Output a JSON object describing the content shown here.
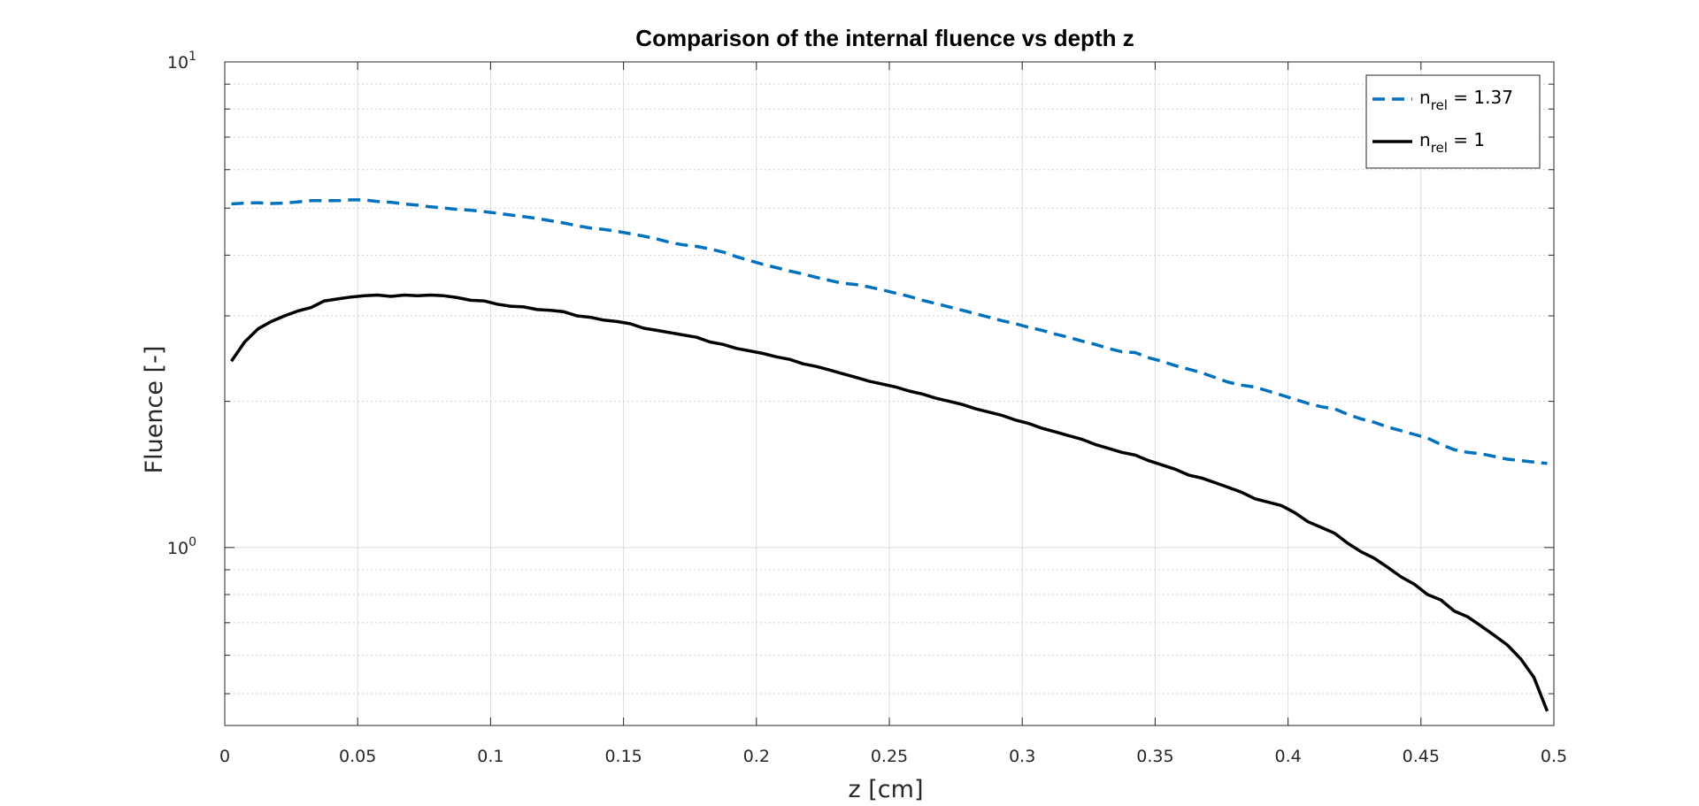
{
  "chart_data": {
    "type": "line",
    "title": "Comparison of the internal fluence vs depth z",
    "xlabel": "z [cm]",
    "ylabel": "Fluence [-]",
    "xlim": [
      0,
      0.5
    ],
    "ylim": [
      0.43,
      10
    ],
    "yscale": "log",
    "grid": true,
    "legend_position": "top-right",
    "x_ticks": [
      "0",
      "0.05",
      "0.1",
      "0.15",
      "0.2",
      "0.25",
      "0.3",
      "0.35",
      "0.4",
      "0.45",
      "0.5"
    ],
    "y_ticks": [
      {
        "base": "10",
        "exp": "0",
        "value": 1
      },
      {
        "base": "10",
        "exp": "1",
        "value": 10
      }
    ],
    "series": [
      {
        "name": "n_rel = 1.37",
        "legend_main": "n",
        "legend_sub": "rel",
        "legend_rest": " = 1.37",
        "color": "#0072BD",
        "style": "dashed",
        "x": [
          0.0025,
          0.0075,
          0.0125,
          0.0175,
          0.0225,
          0.0275,
          0.0325,
          0.0375,
          0.0425,
          0.0475,
          0.0525,
          0.0575,
          0.0625,
          0.0675,
          0.0725,
          0.0775,
          0.0825,
          0.0875,
          0.0925,
          0.0975,
          0.1025,
          0.1075,
          0.1125,
          0.1175,
          0.1225,
          0.1275,
          0.1325,
          0.1375,
          0.1425,
          0.1475,
          0.1525,
          0.1575,
          0.1625,
          0.1675,
          0.1725,
          0.1775,
          0.1825,
          0.1875,
          0.1925,
          0.1975,
          0.2025,
          0.2075,
          0.2125,
          0.2175,
          0.2225,
          0.2275,
          0.2325,
          0.2375,
          0.2425,
          0.2475,
          0.2525,
          0.2575,
          0.2625,
          0.2675,
          0.2725,
          0.2775,
          0.2825,
          0.2875,
          0.2925,
          0.2975,
          0.3025,
          0.3075,
          0.3125,
          0.3175,
          0.3225,
          0.3275,
          0.3325,
          0.3375,
          0.3425,
          0.3475,
          0.3525,
          0.3575,
          0.3625,
          0.3675,
          0.3725,
          0.3775,
          0.3825,
          0.3875,
          0.3925,
          0.3975,
          0.4025,
          0.4075,
          0.4125,
          0.4175,
          0.4225,
          0.4275,
          0.4325,
          0.4375,
          0.4425,
          0.4475,
          0.4525,
          0.4575,
          0.4625,
          0.4675,
          0.4725,
          0.4775,
          0.4825,
          0.4875,
          0.4925,
          0.4975
        ],
        "values": [
          5.1,
          5.12,
          5.13,
          5.11,
          5.12,
          5.15,
          5.18,
          5.18,
          5.18,
          5.2,
          5.2,
          5.16,
          5.14,
          5.1,
          5.07,
          5.03,
          5.0,
          4.97,
          4.95,
          4.92,
          4.88,
          4.84,
          4.8,
          4.76,
          4.71,
          4.66,
          4.6,
          4.55,
          4.52,
          4.48,
          4.43,
          4.38,
          4.32,
          4.25,
          4.2,
          4.17,
          4.12,
          4.06,
          3.97,
          3.9,
          3.83,
          3.77,
          3.71,
          3.66,
          3.6,
          3.55,
          3.5,
          3.48,
          3.44,
          3.39,
          3.34,
          3.29,
          3.23,
          3.18,
          3.13,
          3.08,
          3.03,
          2.98,
          2.93,
          2.89,
          2.84,
          2.8,
          2.75,
          2.71,
          2.66,
          2.62,
          2.57,
          2.53,
          2.52,
          2.46,
          2.42,
          2.37,
          2.33,
          2.29,
          2.24,
          2.19,
          2.16,
          2.14,
          2.1,
          2.06,
          2.02,
          1.98,
          1.95,
          1.93,
          1.88,
          1.84,
          1.81,
          1.77,
          1.74,
          1.71,
          1.68,
          1.63,
          1.59,
          1.57,
          1.56,
          1.54,
          1.52,
          1.51,
          1.5,
          1.49
        ]
      },
      {
        "name": "n_rel = 1",
        "legend_main": "n",
        "legend_sub": "rel",
        "legend_rest": " = 1",
        "color": "#000000",
        "style": "solid",
        "x": [
          0.0025,
          0.0075,
          0.0125,
          0.0175,
          0.0225,
          0.0275,
          0.0325,
          0.0375,
          0.0425,
          0.0475,
          0.0525,
          0.0575,
          0.0625,
          0.0675,
          0.0725,
          0.0775,
          0.0825,
          0.0875,
          0.0925,
          0.0975,
          0.1025,
          0.1075,
          0.1125,
          0.1175,
          0.1225,
          0.1275,
          0.1325,
          0.1375,
          0.1425,
          0.1475,
          0.1525,
          0.1575,
          0.1625,
          0.1675,
          0.1725,
          0.1775,
          0.1825,
          0.1875,
          0.1925,
          0.1975,
          0.2025,
          0.2075,
          0.2125,
          0.2175,
          0.2225,
          0.2275,
          0.2325,
          0.2375,
          0.2425,
          0.2475,
          0.2525,
          0.2575,
          0.2625,
          0.2675,
          0.2725,
          0.2775,
          0.2825,
          0.2875,
          0.2925,
          0.2975,
          0.3025,
          0.3075,
          0.3125,
          0.3175,
          0.3225,
          0.3275,
          0.3325,
          0.3375,
          0.3425,
          0.3475,
          0.3525,
          0.3575,
          0.3625,
          0.3675,
          0.3725,
          0.3775,
          0.3825,
          0.3875,
          0.3925,
          0.3975,
          0.4025,
          0.4075,
          0.4125,
          0.4175,
          0.4225,
          0.4275,
          0.4325,
          0.4375,
          0.4425,
          0.4475,
          0.4525,
          0.4575,
          0.4625,
          0.4675,
          0.4725,
          0.4775,
          0.4825,
          0.4875,
          0.4925,
          0.4975
        ],
        "values": [
          2.42,
          2.65,
          2.82,
          2.92,
          3.0,
          3.07,
          3.12,
          3.22,
          3.25,
          3.28,
          3.3,
          3.31,
          3.29,
          3.31,
          3.3,
          3.31,
          3.3,
          3.27,
          3.23,
          3.22,
          3.17,
          3.14,
          3.13,
          3.09,
          3.08,
          3.06,
          3.0,
          2.98,
          2.94,
          2.92,
          2.89,
          2.83,
          2.8,
          2.77,
          2.74,
          2.71,
          2.65,
          2.62,
          2.57,
          2.54,
          2.51,
          2.47,
          2.44,
          2.39,
          2.36,
          2.32,
          2.28,
          2.24,
          2.2,
          2.17,
          2.14,
          2.1,
          2.07,
          2.03,
          2.0,
          1.97,
          1.93,
          1.9,
          1.87,
          1.83,
          1.8,
          1.76,
          1.73,
          1.7,
          1.67,
          1.63,
          1.6,
          1.57,
          1.55,
          1.51,
          1.48,
          1.45,
          1.41,
          1.39,
          1.36,
          1.33,
          1.3,
          1.26,
          1.24,
          1.22,
          1.18,
          1.13,
          1.1,
          1.07,
          1.02,
          0.98,
          0.95,
          0.91,
          0.87,
          0.84,
          0.8,
          0.78,
          0.74,
          0.72,
          0.69,
          0.66,
          0.63,
          0.59,
          0.54,
          0.46
        ]
      }
    ]
  }
}
